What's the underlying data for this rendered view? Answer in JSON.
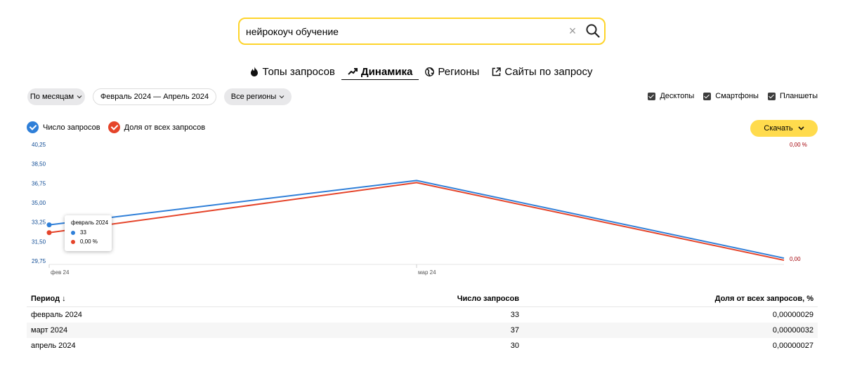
{
  "search": {
    "value": "нейрокоуч обучение",
    "clear_icon": "close-icon",
    "search_icon": "search-icon"
  },
  "tabs": [
    {
      "label": "Топы запросов",
      "icon": "fire-icon",
      "active": false
    },
    {
      "label": "Динамика",
      "icon": "trend-icon",
      "active": true
    },
    {
      "label": "Регионы",
      "icon": "globe-icon",
      "active": false
    },
    {
      "label": "Сайты по запросу",
      "icon": "external-link-icon",
      "active": false
    }
  ],
  "filters": {
    "grouping": "По месяцам",
    "period": "Февраль 2024 — Апрель 2024",
    "region": "Все регионы"
  },
  "devices": [
    {
      "label": "Десктопы",
      "checked": true
    },
    {
      "label": "Смартфоны",
      "checked": true
    },
    {
      "label": "Планшеты",
      "checked": true
    }
  ],
  "legend": [
    {
      "label": "Число запросов",
      "color": "#2f7fd8"
    },
    {
      "label": "Доля от всех запросов",
      "color": "#e5442a"
    }
  ],
  "download_label": "Скачать",
  "chart_data": {
    "type": "line",
    "categories": [
      "фев 24",
      "мар 24",
      "апр 24"
    ],
    "x_tick_labels": [
      "фев 24",
      "мар 24"
    ],
    "y_ticks": [
      "40,25",
      "38,50",
      "36,75",
      "35,00",
      "33,25",
      "31,50",
      "29,75"
    ],
    "y_right_ticks": [
      "0,00 %",
      "0,00"
    ],
    "ylim": [
      29.75,
      40.25
    ],
    "series": [
      {
        "name": "Число запросов",
        "color": "#2f7fd8",
        "values": [
          33,
          37,
          30
        ]
      },
      {
        "name": "Доля от всех запросов",
        "color": "#e5442a",
        "values": [
          2.9e-07,
          3.2e-07,
          2.7e-07
        ]
      }
    ],
    "tooltip": {
      "title": "февраль 2024",
      "count": "33",
      "share": "0,00 %"
    }
  },
  "table": {
    "headers": [
      "Период",
      "Число запросов",
      "Доля от всех запросов, %"
    ],
    "rows": [
      [
        "февраль 2024",
        "33",
        "0,00000029"
      ],
      [
        "март 2024",
        "37",
        "0,00000032"
      ],
      [
        "апрель 2024",
        "30",
        "0,00000027"
      ]
    ]
  }
}
